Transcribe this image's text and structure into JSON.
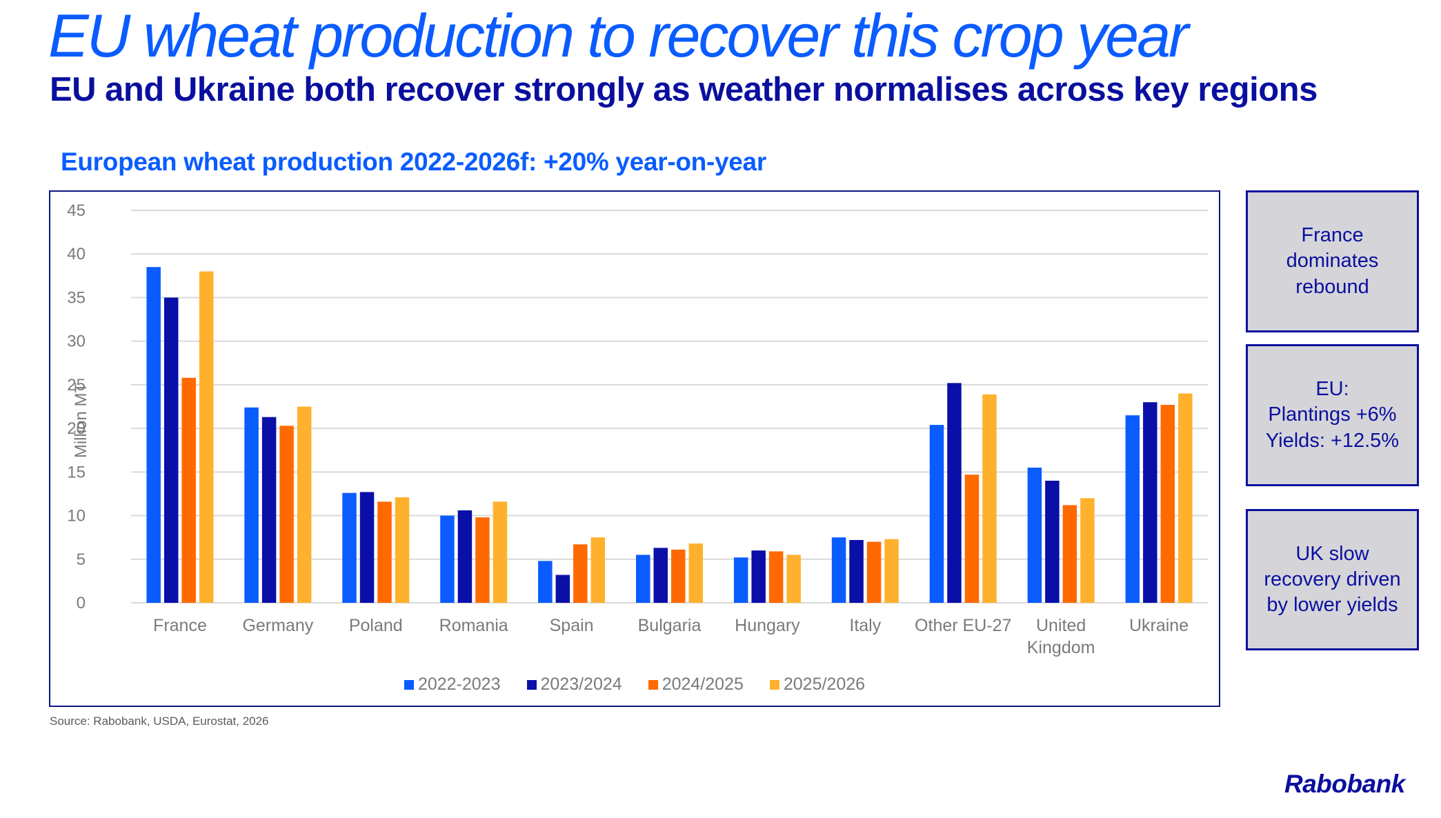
{
  "header": {
    "title": "EU wheat production to recover this crop year",
    "subtitle": "EU and Ukraine both recover strongly as weather normalises across key regions"
  },
  "chart_data": {
    "type": "bar",
    "title": "European wheat production 2022-2026f: +20% year-on-year",
    "xlabel": "",
    "ylabel": "Million MT",
    "ylim": [
      0,
      45
    ],
    "yticks": [
      0,
      5,
      10,
      15,
      20,
      25,
      30,
      35,
      40,
      45
    ],
    "grid": true,
    "legend_position": "bottom",
    "categories": [
      "France",
      "Germany",
      "Poland",
      "Romania",
      "Spain",
      "Bulgaria",
      "Hungary",
      "Italy",
      "Other EU-27",
      "United Kingdom",
      "Ukraine"
    ],
    "category_label_lines": [
      [
        "France"
      ],
      [
        "Germany"
      ],
      [
        "Poland"
      ],
      [
        "Romania"
      ],
      [
        "Spain"
      ],
      [
        "Bulgaria"
      ],
      [
        "Hungary"
      ],
      [
        "Italy"
      ],
      [
        "Other EU-27"
      ],
      [
        "United",
        "Kingdom"
      ],
      [
        "Ukraine"
      ]
    ],
    "series": [
      {
        "name": "2022-2023",
        "color": "#0a5cff",
        "values": [
          38.5,
          22.4,
          12.6,
          10.0,
          4.8,
          5.5,
          5.2,
          7.5,
          20.4,
          15.5,
          21.5
        ]
      },
      {
        "name": "2023/2024",
        "color": "#0a0fa8",
        "values": [
          35.0,
          21.3,
          12.7,
          10.6,
          3.2,
          6.3,
          6.0,
          7.2,
          25.2,
          14.0,
          23.0
        ]
      },
      {
        "name": "2024/2025",
        "color": "#ff6a00",
        "values": [
          25.8,
          20.3,
          11.6,
          9.8,
          6.7,
          6.1,
          5.9,
          7.0,
          14.7,
          11.2,
          22.7
        ]
      },
      {
        "name": "2025/2026",
        "color": "#ffb12e",
        "values": [
          38.0,
          22.5,
          12.1,
          11.6,
          7.5,
          6.8,
          5.5,
          7.3,
          23.9,
          12.0,
          24.0
        ]
      }
    ]
  },
  "callouts": [
    {
      "text": "France\ndominates\nrebound"
    },
    {
      "text": "EU:\nPlantings +6%\nYields: +12.5%"
    },
    {
      "text": "UK slow\nrecovery driven\nby lower yields"
    }
  ],
  "footer": {
    "source": "Source: Rabobank, USDA,  Eurostat, 2026",
    "logo": "Rabobank"
  }
}
